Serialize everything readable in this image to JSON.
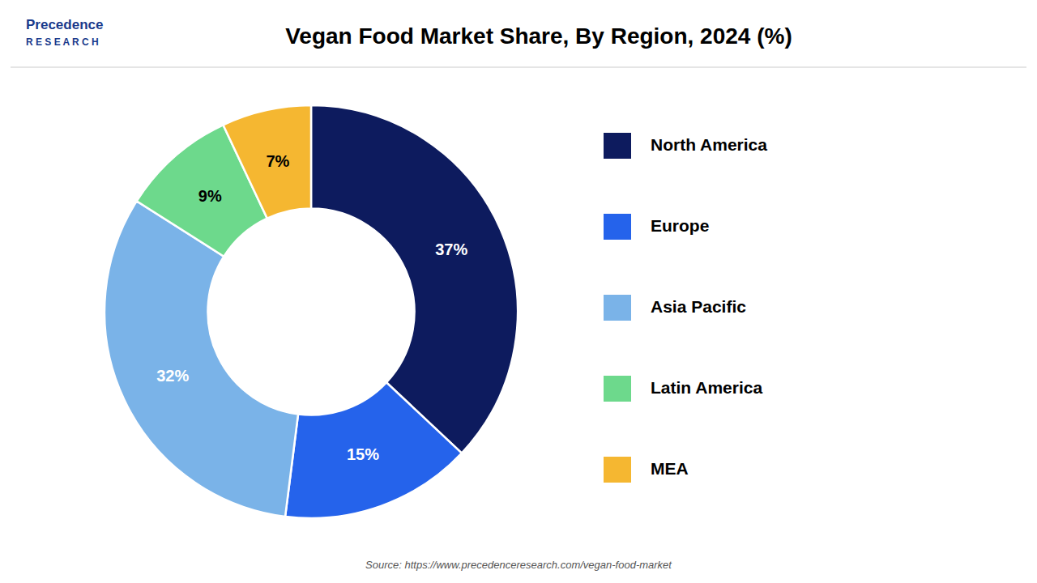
{
  "chart_data": {
    "type": "donut",
    "title": "Vegan Food Market Share, By Region, 2024 (%)",
    "categories": [
      "North America",
      "Europe",
      "Asia Pacific",
      "Latin America",
      "MEA"
    ],
    "values": [
      37,
      15,
      32,
      9,
      7
    ],
    "value_labels": [
      "37%",
      "15%",
      "32%",
      "9%",
      "7%"
    ],
    "data_labels": true,
    "colors": [
      "#0d1b5e",
      "#2563eb",
      "#7ab3e8",
      "#6dd98c",
      "#f5b731"
    ],
    "legend": "right",
    "annotations": [
      "Precedence",
      "R E S E A R C H",
      "Source: https://www.precedenceresearch.com/vegan-food-market"
    ]
  }
}
